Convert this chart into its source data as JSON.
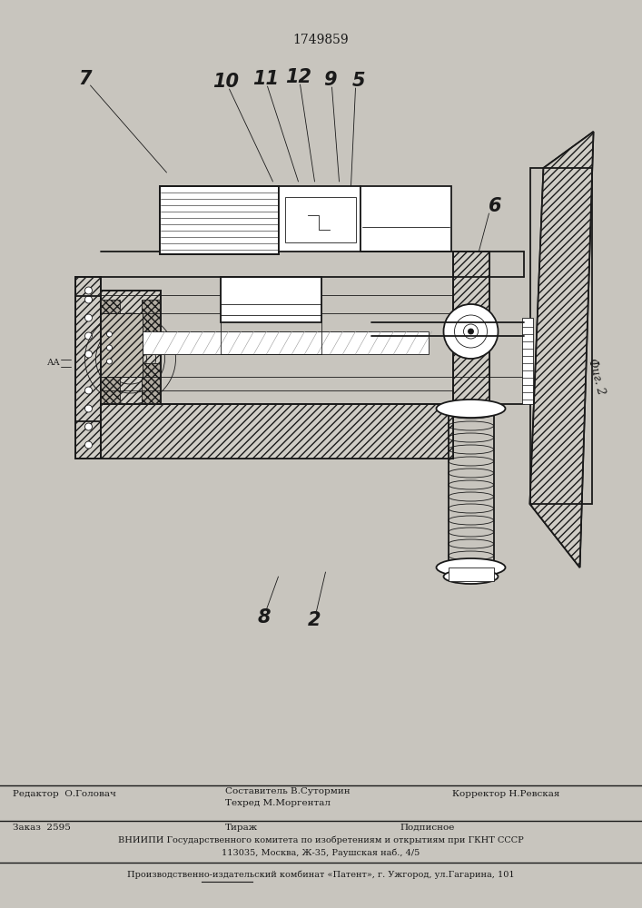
{
  "title": "1749859",
  "bg_color": "#c8c5be",
  "page_color": "#e2dfd8",
  "fig_width": 7.07,
  "fig_height": 10.0,
  "footer_editor": "Редактор  О.Головач",
  "footer_comp_top": "Составитель В.Сутормин",
  "footer_comp_bot": "Техред М.Моргентал",
  "footer_corrector": "Корректор Н.Ревская",
  "footer2_col1": "Заказ  2595",
  "footer2_col2": "Тираж",
  "footer2_col3": "Подписное",
  "footer3": "ВНИИПИ Государственного комитета по изобретениям и открытиям при ГКНТ СССР",
  "footer4": "113035, Москва, Ж-35, Раушская наб., 4/5",
  "footer5": "Производственно-издательский комбинат «Патент», г. Ужгород, ул.Гагарина, 101",
  "lc": "#1a1a1a",
  "lw_main": 1.3,
  "lw_thin": 0.6,
  "lw_thick": 2.0,
  "label_fs": 15
}
